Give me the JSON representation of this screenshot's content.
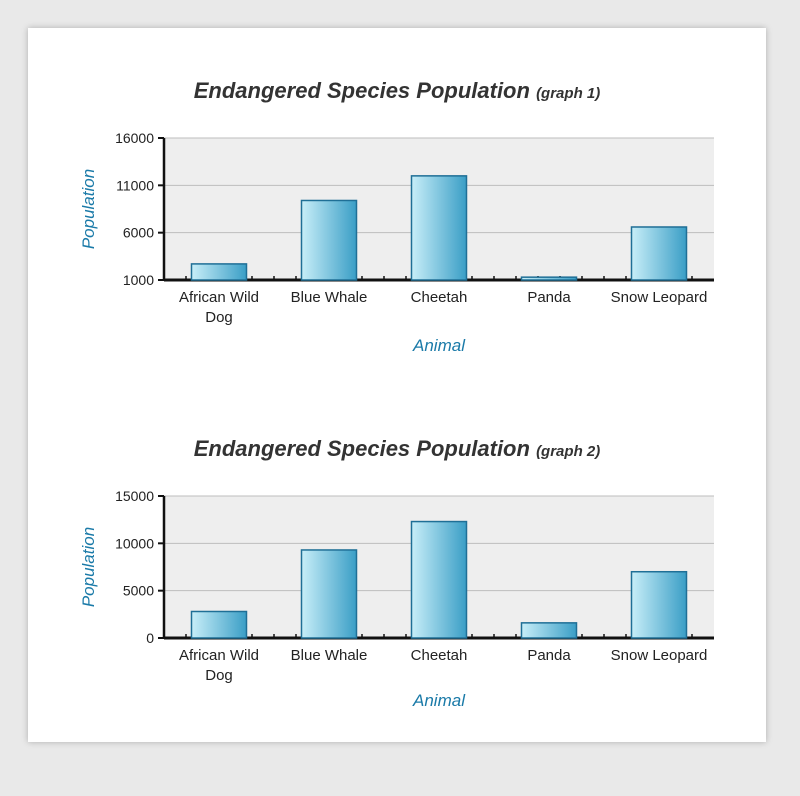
{
  "chart_data": [
    {
      "type": "bar",
      "title": "Endangered Species Population",
      "subtitle": "(graph 1)",
      "xlabel": "Animal",
      "ylabel": "Population",
      "ylim": [
        1000,
        16000
      ],
      "yticks": [
        1000,
        6000,
        11000,
        16000
      ],
      "grid": true,
      "categories": [
        "African Wild Dog",
        "Blue Whale",
        "Cheetah",
        "Panda",
        "Snow Leopard"
      ],
      "values": [
        2700,
        9400,
        12000,
        1300,
        6600
      ]
    },
    {
      "type": "bar",
      "title": "Endangered Species Population",
      "subtitle": "(graph 2)",
      "xlabel": "Animal",
      "ylabel": "Population",
      "ylim": [
        0,
        15000
      ],
      "yticks": [
        0,
        5000,
        10000,
        15000
      ],
      "grid": true,
      "categories": [
        "African Wild Dog",
        "Blue Whale",
        "Cheetah",
        "Panda",
        "Snow Leopard"
      ],
      "values": [
        2800,
        9300,
        12300,
        1600,
        7000
      ]
    }
  ],
  "colors": {
    "bar_light": "#c8eef8",
    "bar_dark": "#3a9ec6",
    "bar_stroke": "#1f6f96",
    "plot_bg": "#eeeeee",
    "grid": "#bdbdbd",
    "axis_label": "#1a7aa8"
  }
}
